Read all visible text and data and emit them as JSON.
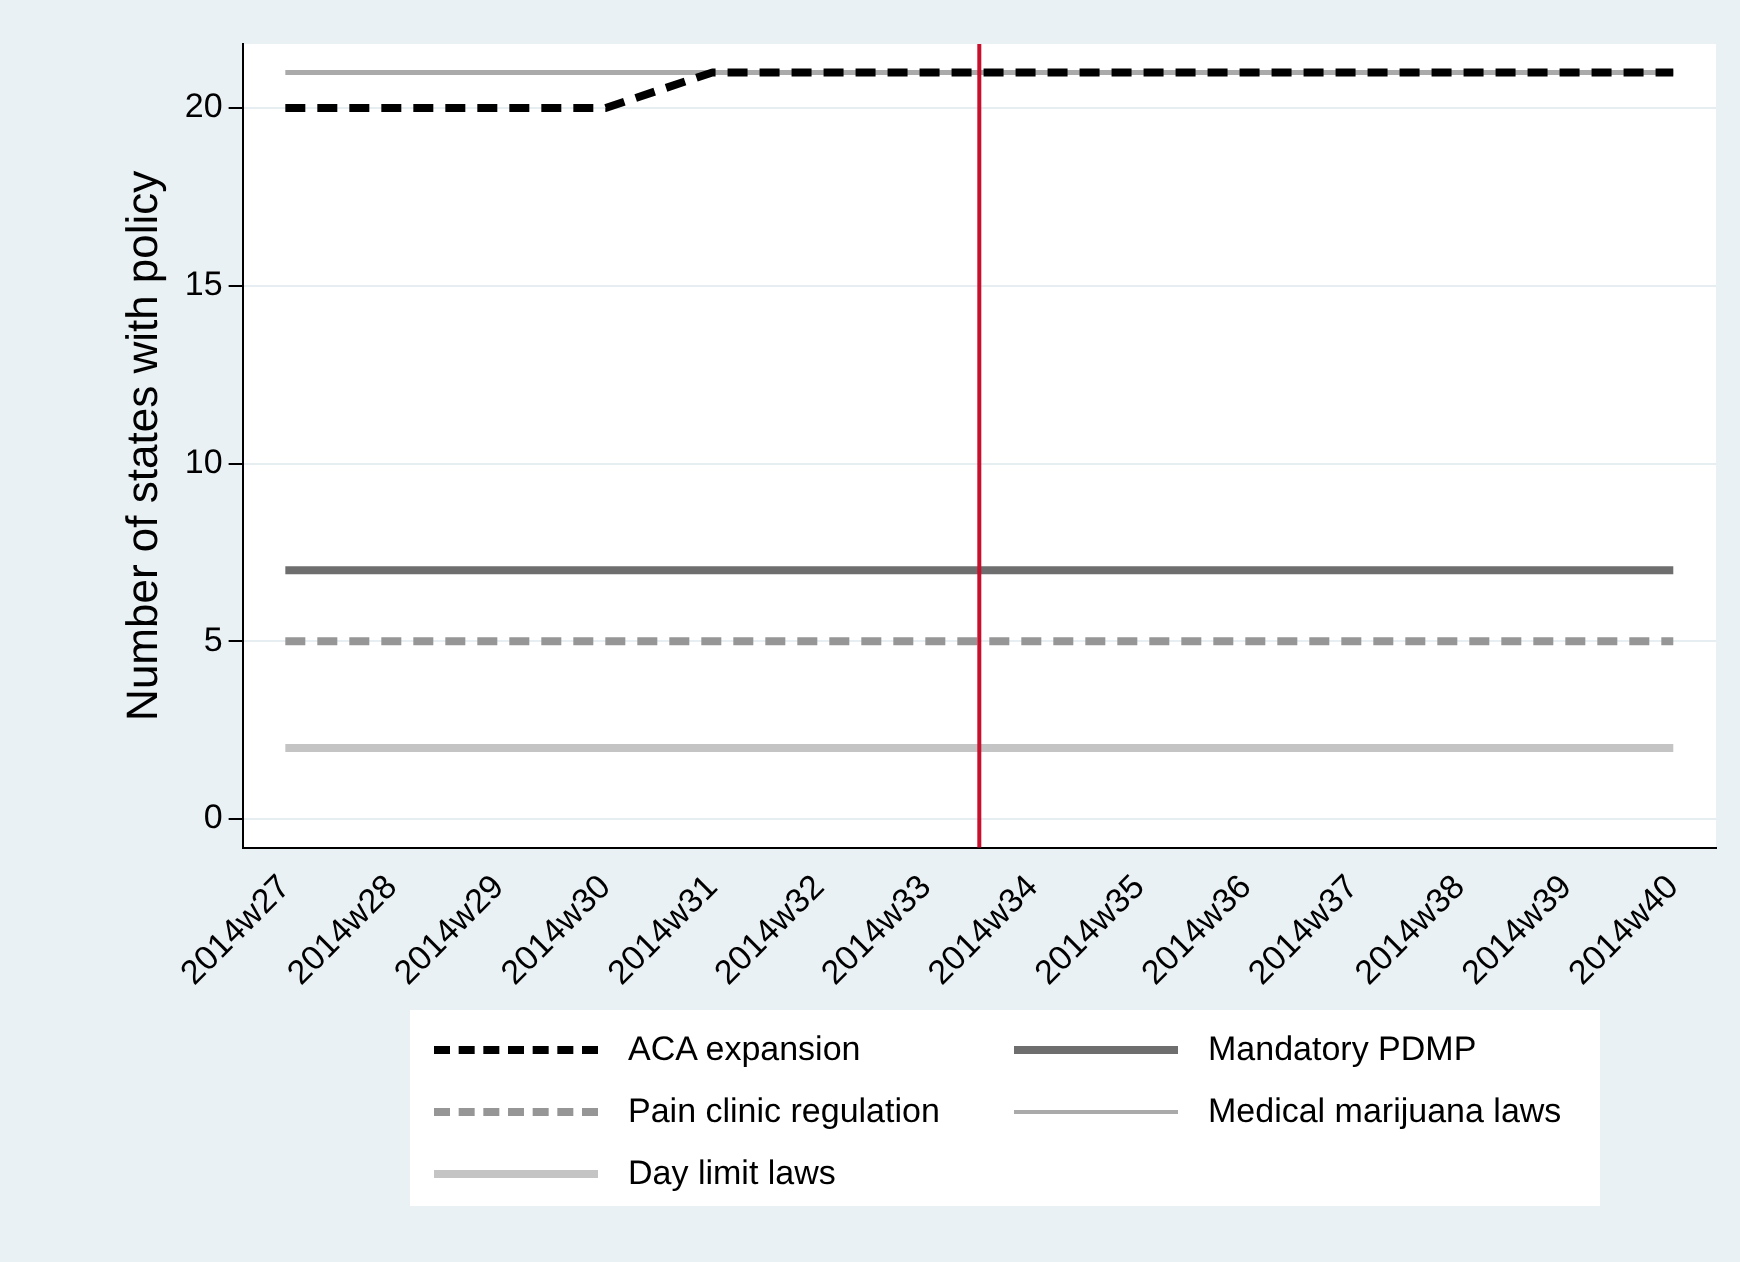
{
  "chart_data": {
    "type": "line",
    "ylabel": "Number of states with policy",
    "categories": [
      "2014w27",
      "2014w28",
      "2014w29",
      "2014w30",
      "2014w31",
      "2014w32",
      "2014w33",
      "2014w34",
      "2014w35",
      "2014w36",
      "2014w37",
      "2014w38",
      "2014w39",
      "2014w40"
    ],
    "ylim": [
      -0.8,
      21.8
    ],
    "yticks": [
      0,
      5,
      10,
      15,
      20
    ],
    "grid": "y",
    "legend": "bottom",
    "marker": "none",
    "series": [
      {
        "name": "ACA expansion",
        "color": "#000000",
        "line_style": "dashed",
        "values": [
          20,
          20,
          20,
          20,
          21,
          21,
          21,
          21,
          21,
          21,
          21,
          21,
          21,
          21
        ]
      },
      {
        "name": "Mandatory PDMP",
        "color": "#6e6e6e",
        "line_style": "solid",
        "values": [
          7,
          7,
          7,
          7,
          7,
          7,
          7,
          7,
          7,
          7,
          7,
          7,
          7,
          7
        ]
      },
      {
        "name": "Pain clinic regulation",
        "color": "#969696",
        "line_style": "dashed",
        "values": [
          5,
          5,
          5,
          5,
          5,
          5,
          5,
          5,
          5,
          5,
          5,
          5,
          5,
          5
        ]
      },
      {
        "name": "Medical marijuana laws",
        "color": "#aaaaaa",
        "line_style": "solid",
        "values": [
          21,
          21,
          21,
          21,
          21,
          21,
          21,
          21,
          21,
          21,
          21,
          21,
          21,
          21
        ]
      },
      {
        "name": "Day limit laws",
        "color": "#c4c4c4",
        "line_style": "solid",
        "values": [
          2,
          2,
          2,
          2,
          2,
          2,
          2,
          2,
          2,
          2,
          2,
          2,
          2,
          2
        ]
      }
    ],
    "ref_lines": [
      {
        "axis": "x",
        "value": "2014w34",
        "color": "#c8102e",
        "line_style": "solid"
      }
    ]
  }
}
